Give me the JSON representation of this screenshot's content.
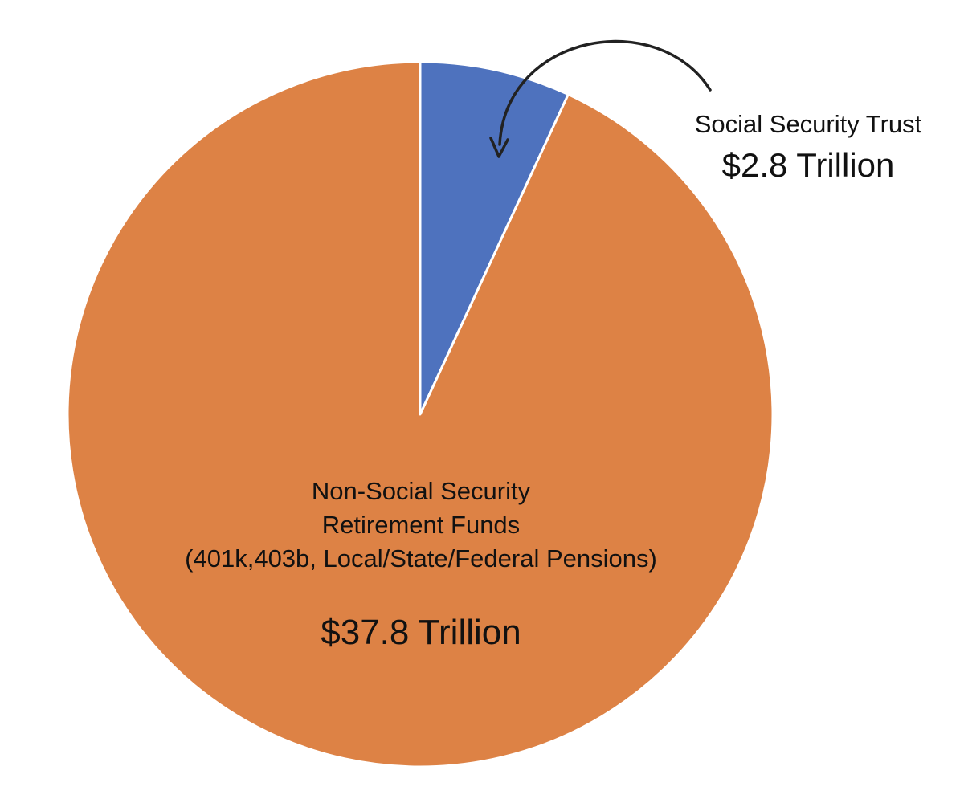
{
  "chart_data": {
    "type": "pie",
    "slices": [
      {
        "label_lines": [
          "Social Security Trust"
        ],
        "value_label": "$2.8 Trillion",
        "value": 2.8,
        "color": "#4E72BE"
      },
      {
        "label_lines": [
          "Non-Social Security",
          "Retirement Funds",
          "(401k,403b, Local/State/Federal Pensions)"
        ],
        "value_label": "$37.8 Trillion",
        "value": 37.8,
        "color": "#DD8245"
      }
    ],
    "slice_border_color": "#ffffff",
    "annotation_arrow_color": "#222222"
  }
}
